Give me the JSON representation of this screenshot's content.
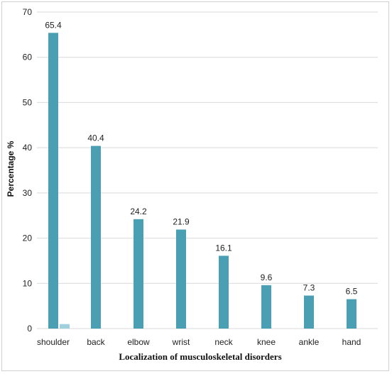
{
  "chart_data": {
    "type": "bar",
    "categories": [
      "shoulder",
      "back",
      "elbow",
      "wrist",
      "neck",
      "knee",
      "ankle",
      "hand"
    ],
    "series": [
      {
        "values": [
          65.4,
          40.4,
          24.2,
          21.9,
          16.1,
          9.6,
          7.3,
          6.5
        ],
        "color": "#4a9fb2",
        "show_labels": true
      },
      {
        "values": [
          1,
          null,
          null,
          null,
          null,
          null,
          null,
          null
        ],
        "color": "#9fd0dc",
        "show_labels": false
      }
    ],
    "data_labels": [
      "65.4",
      "40.4",
      "24.2",
      "21.9",
      "16.1",
      "9.6",
      "7.3",
      "6.5"
    ],
    "title": "",
    "xlabel": "Localization of musculoskeletal disorders",
    "ylabel": "Percentage %",
    "ylim": [
      0,
      70
    ],
    "yticks": [
      0,
      10,
      20,
      30,
      40,
      50,
      60,
      70
    ],
    "grid": "horizontal",
    "gridline_color": "#d9d9d9",
    "legend": "none"
  }
}
